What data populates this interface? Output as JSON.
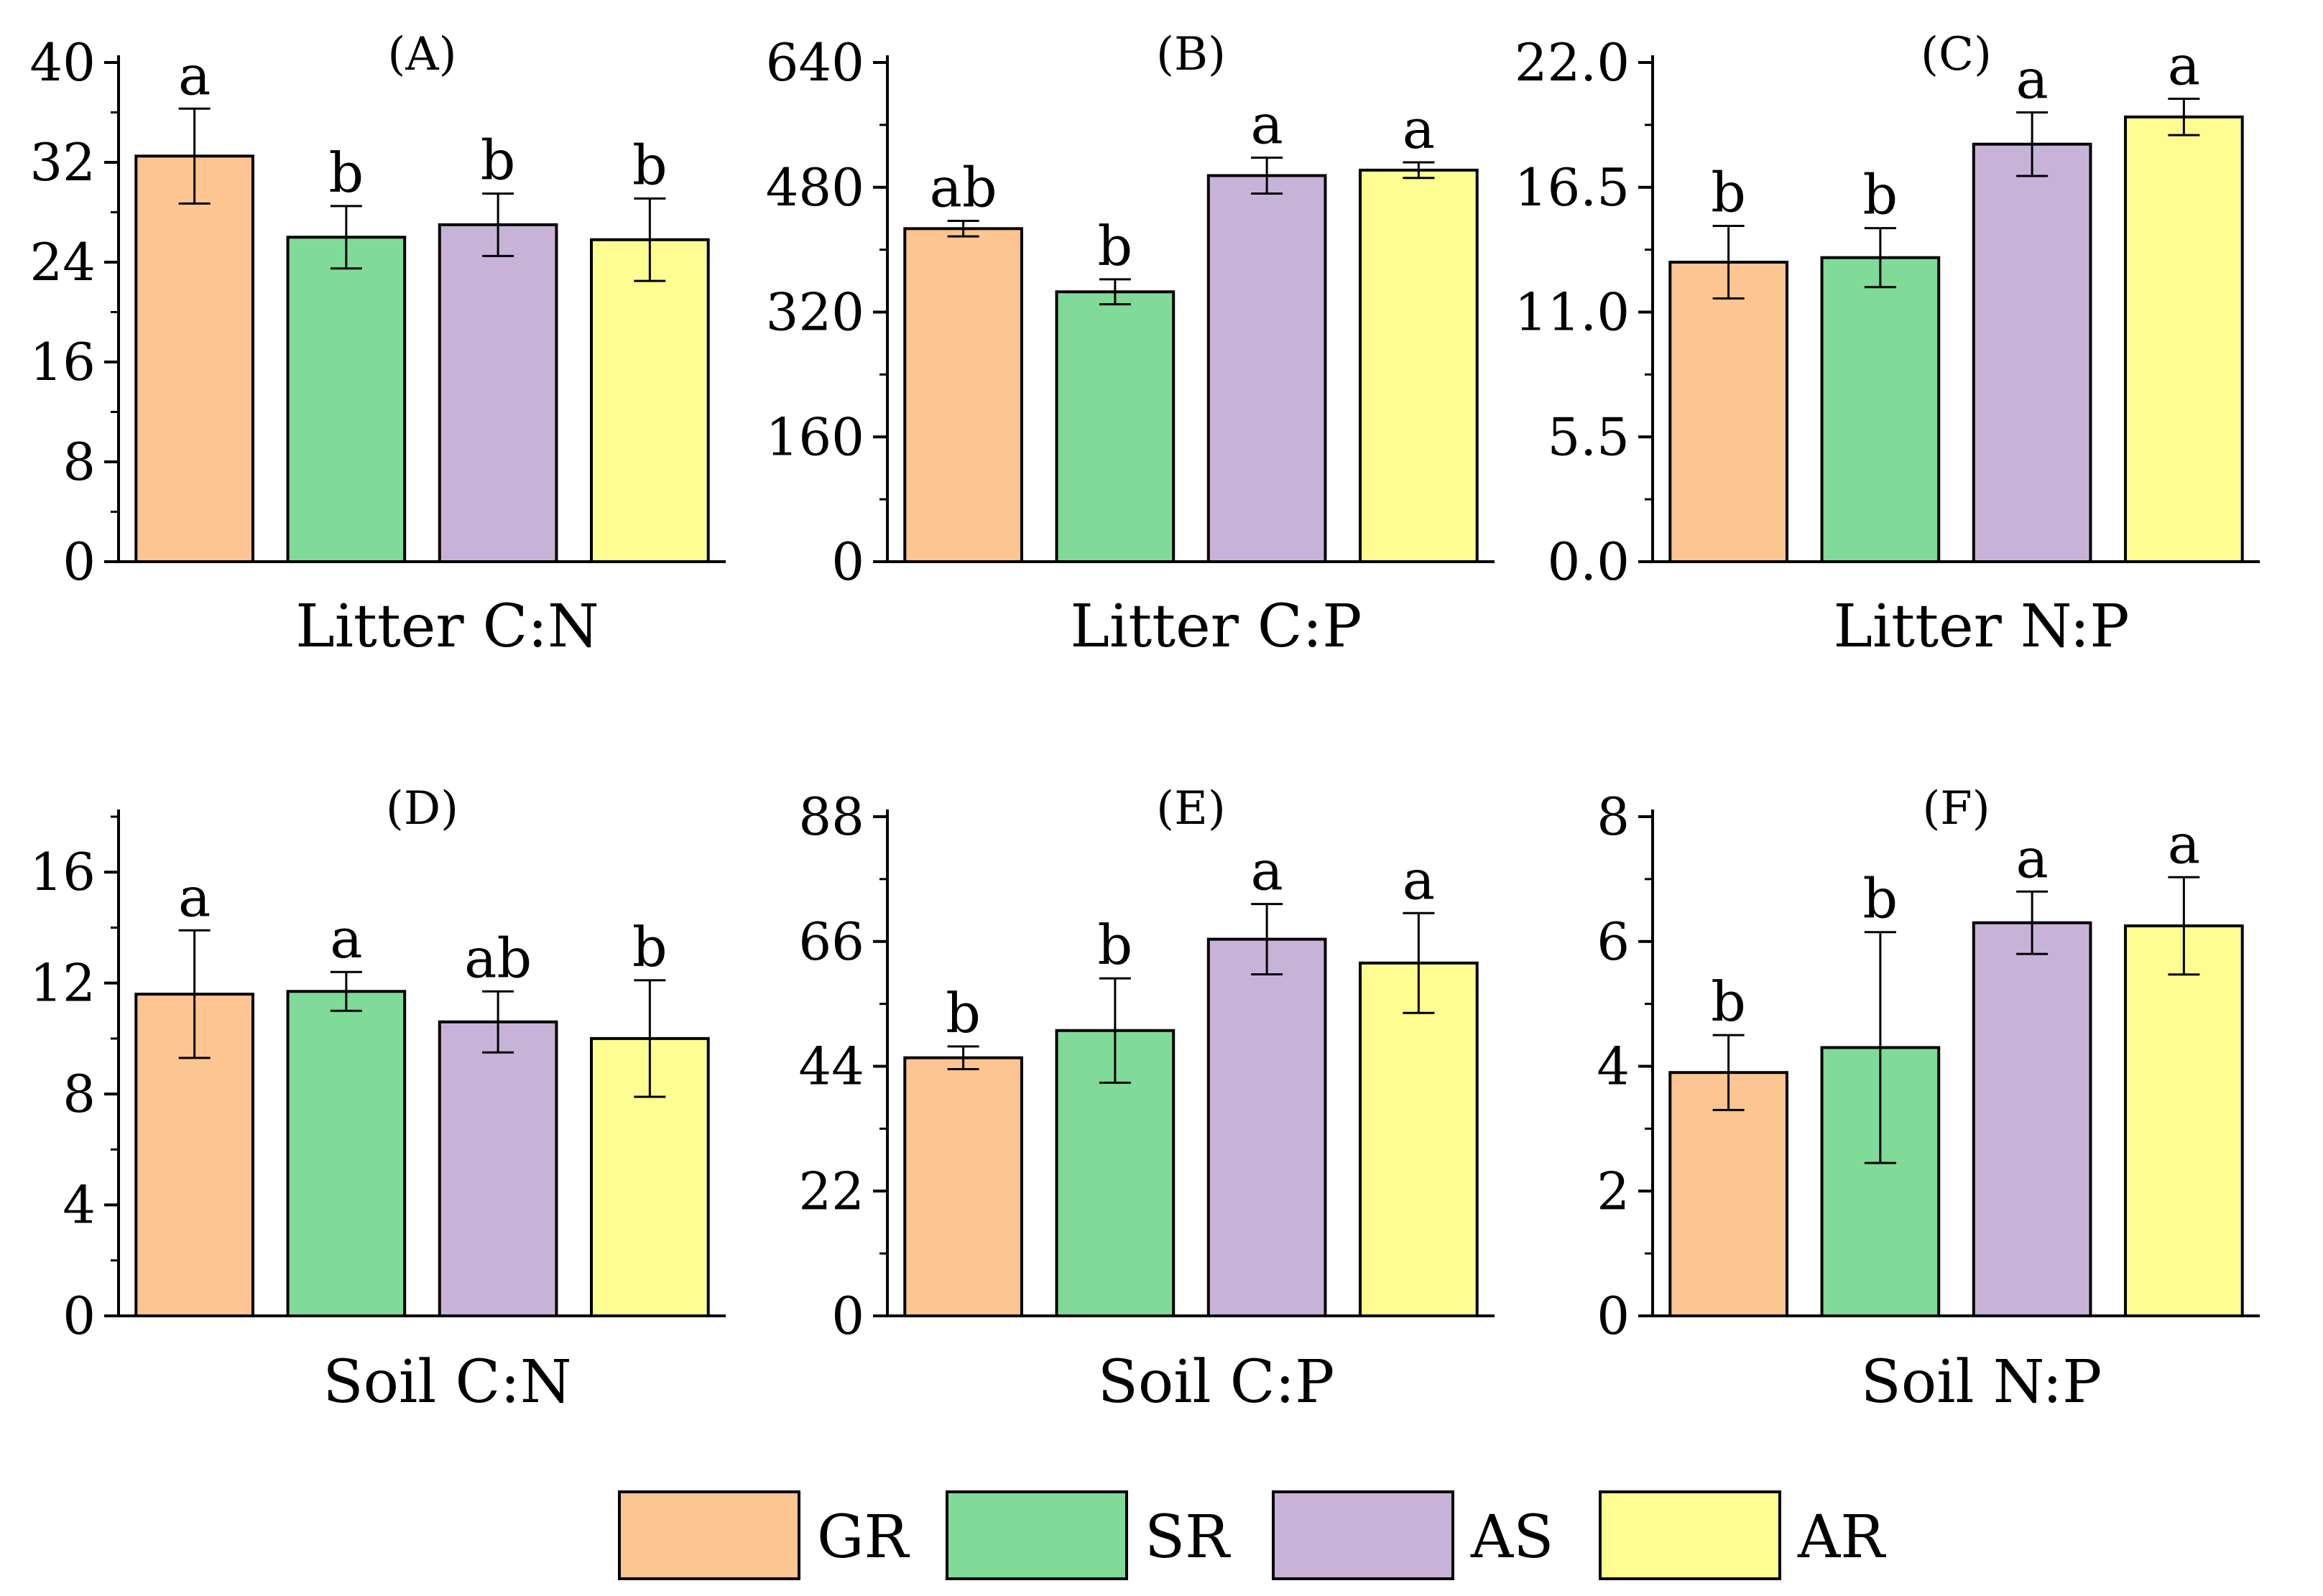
{
  "legend": [
    {
      "label": "GR",
      "color": "#FDC591"
    },
    {
      "label": "SR",
      "color": "#80DA98"
    },
    {
      "label": "AS",
      "color": "#C8B3D8"
    },
    {
      "label": "AR",
      "color": "#FDFD91"
    }
  ],
  "chart_data": [
    {
      "type": "bar",
      "panel": "(A)",
      "xlabel": "Litter C:N",
      "categories": [
        "GR",
        "SR",
        "AS",
        "AR"
      ],
      "values": [
        32.5,
        26.0,
        27.0,
        25.8
      ],
      "errors": [
        3.8,
        2.5,
        2.5,
        3.3
      ],
      "letters": [
        "a",
        "b",
        "b",
        "b"
      ],
      "ylim": [
        0,
        40
      ],
      "yticks": [
        0,
        8,
        16,
        24,
        32,
        40
      ],
      "ytick_labels": [
        "0",
        "8",
        "16",
        "24",
        "32",
        "40"
      ]
    },
    {
      "type": "bar",
      "panel": "(B)",
      "xlabel": "Litter C:P",
      "categories": [
        "GR",
        "SR",
        "AS",
        "AR"
      ],
      "values": [
        427,
        346,
        495,
        502
      ],
      "errors": [
        10,
        16,
        23,
        10
      ],
      "letters": [
        "ab",
        "b",
        "a",
        "a"
      ],
      "ylim": [
        0,
        640
      ],
      "yticks": [
        0,
        160,
        320,
        480,
        640
      ],
      "ytick_labels": [
        "0",
        "160",
        "320",
        "480",
        "640"
      ]
    },
    {
      "type": "bar",
      "panel": "(C)",
      "xlabel": "Litter N:P",
      "categories": [
        "GR",
        "SR",
        "AS",
        "AR"
      ],
      "values": [
        13.2,
        13.4,
        18.4,
        19.6
      ],
      "errors": [
        1.6,
        1.3,
        1.4,
        0.8
      ],
      "letters": [
        "b",
        "b",
        "a",
        "a"
      ],
      "ylim": [
        0,
        22
      ],
      "yticks": [
        0,
        5.5,
        11,
        16.5,
        22
      ],
      "ytick_labels": [
        "0.0",
        "5.5",
        "11.0",
        "16.5",
        "22.0"
      ]
    },
    {
      "type": "bar",
      "panel": "(D)",
      "xlabel": "Soil C:N",
      "categories": [
        "GR",
        "SR",
        "AS",
        "AR"
      ],
      "values": [
        11.6,
        11.7,
        10.6,
        10.0
      ],
      "errors": [
        2.3,
        0.7,
        1.1,
        2.1
      ],
      "letters": [
        "a",
        "a",
        "ab",
        "b"
      ],
      "ylim": [
        0,
        18
      ],
      "yticks": [
        0,
        4,
        8,
        12,
        16
      ],
      "ytick_labels": [
        "0",
        "4",
        "8",
        "12",
        "16"
      ]
    },
    {
      "type": "bar",
      "panel": "(E)",
      "xlabel": "Soil C:P",
      "categories": [
        "GR",
        "SR",
        "AS",
        "AR"
      ],
      "values": [
        45.5,
        50.3,
        66.4,
        62.2
      ],
      "errors": [
        2.0,
        9.2,
        6.2,
        8.8
      ],
      "letters": [
        "b",
        "b",
        "a",
        "a"
      ],
      "ylim": [
        0,
        88
      ],
      "yticks": [
        0,
        22,
        44,
        66,
        88
      ],
      "ytick_labels": [
        "0",
        "22",
        "44",
        "66",
        "88"
      ]
    },
    {
      "type": "bar",
      "panel": "(F)",
      "xlabel": "Soil N:P",
      "categories": [
        "GR",
        "SR",
        "AS",
        "AR"
      ],
      "values": [
        3.9,
        4.3,
        6.3,
        6.25
      ],
      "errors": [
        0.6,
        1.85,
        0.5,
        0.78
      ],
      "letters": [
        "b",
        "b",
        "a",
        "a"
      ],
      "ylim": [
        0,
        8
      ],
      "yticks": [
        0,
        2,
        4,
        6,
        8
      ],
      "ytick_labels": [
        "0",
        "2",
        "4",
        "6",
        "8"
      ]
    }
  ]
}
